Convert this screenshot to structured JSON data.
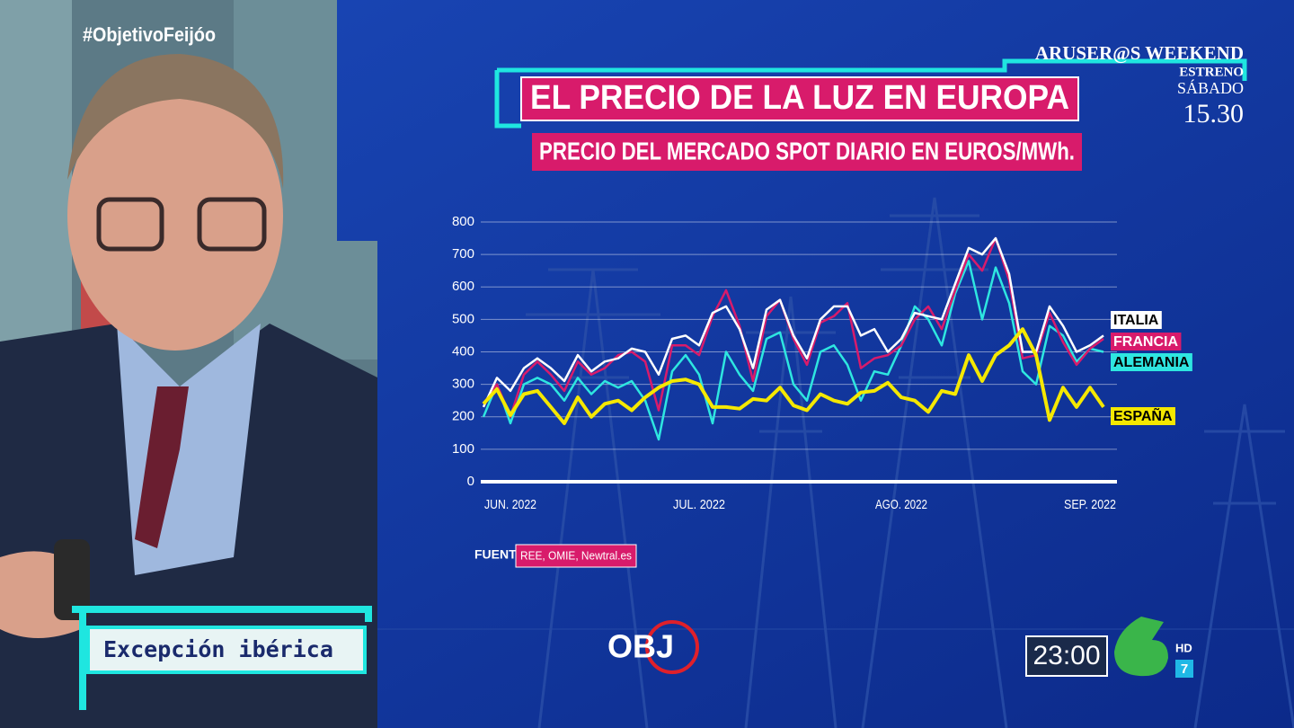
{
  "overlay": {
    "hashtag": "#ObjetivoFeijóo",
    "promo": {
      "show": "ARUSER@S WEEKEND",
      "note": "ESTRENO",
      "day": "SÁBADO",
      "time": "15.30"
    },
    "lower_third": "Excepción ibérica",
    "program_logo": "OBJ",
    "clock": "23:00",
    "hd": "HD",
    "channel_number": "7"
  },
  "chart_data": {
    "type": "line",
    "title": "EL PRECIO DE LA LUZ EN EUROPA",
    "subtitle": "PRECIO DEL MERCADO SPOT DIARIO EN EUROS/MWh.",
    "source_label": "FUENTE:",
    "source": "REE, OMIE, Newtral.es",
    "categories": [
      null,
      null,
      "JUN. 2022",
      null,
      null,
      null,
      null,
      null,
      null,
      null,
      null,
      null,
      null,
      null,
      null,
      null,
      "JUL. 2022",
      null,
      null,
      null,
      null,
      null,
      null,
      null,
      null,
      null,
      null,
      null,
      null,
      null,
      null,
      "AGO. 2022",
      null,
      null,
      null,
      null,
      null,
      null,
      null,
      null,
      null,
      null,
      null,
      null,
      null,
      "SEP. 2022",
      null
    ],
    "ylim": [
      0,
      800
    ],
    "yticks": [
      0,
      100,
      200,
      300,
      400,
      500,
      600,
      700,
      800
    ],
    "grid": true,
    "series": [
      {
        "name": "ITALIA",
        "color": "#ffffff",
        "values": [
          230,
          320,
          280,
          350,
          380,
          350,
          310,
          390,
          340,
          370,
          380,
          410,
          400,
          330,
          440,
          450,
          420,
          520,
          540,
          470,
          350,
          530,
          560,
          450,
          380,
          500,
          540,
          540,
          450,
          470,
          400,
          440,
          520,
          510,
          500,
          610,
          720,
          700,
          750,
          640,
          400,
          400,
          540,
          480,
          400,
          420,
          450
        ]
      },
      {
        "name": "FRANCIA",
        "color": "#d81b6b",
        "values": [
          240,
          300,
          200,
          330,
          370,
          330,
          280,
          370,
          330,
          350,
          390,
          400,
          370,
          220,
          420,
          420,
          390,
          510,
          590,
          480,
          310,
          510,
          560,
          440,
          360,
          490,
          510,
          550,
          350,
          380,
          390,
          420,
          500,
          540,
          470,
          590,
          700,
          650,
          750,
          620,
          380,
          390,
          520,
          430,
          360,
          410,
          440
        ]
      },
      {
        "name": "ALEMANIA",
        "color": "#2ee6e0",
        "values": [
          200,
          300,
          180,
          300,
          320,
          300,
          250,
          320,
          270,
          310,
          290,
          310,
          250,
          130,
          340,
          390,
          330,
          180,
          400,
          330,
          280,
          440,
          460,
          300,
          250,
          400,
          420,
          360,
          250,
          340,
          330,
          420,
          540,
          500,
          420,
          580,
          680,
          500,
          660,
          550,
          340,
          300,
          480,
          450,
          370,
          410,
          400
        ]
      },
      {
        "name": "ESPAÑA",
        "color": "#f5e800",
        "values": [
          240,
          285,
          205,
          270,
          280,
          230,
          180,
          260,
          200,
          240,
          250,
          220,
          260,
          290,
          310,
          315,
          300,
          230,
          230,
          225,
          255,
          250,
          290,
          235,
          220,
          270,
          250,
          240,
          275,
          280,
          305,
          260,
          250,
          215,
          280,
          270,
          390,
          310,
          390,
          420,
          470,
          390,
          190,
          290,
          230,
          290,
          230
        ]
      }
    ]
  }
}
